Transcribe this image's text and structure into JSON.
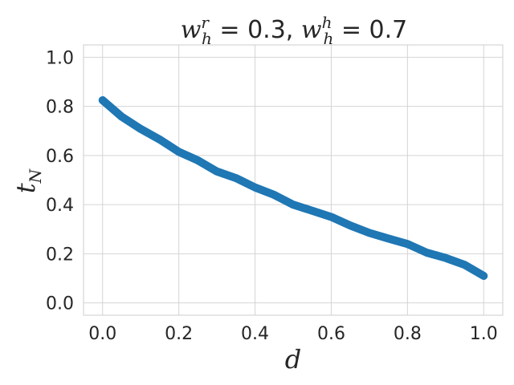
{
  "chart_data": {
    "type": "line",
    "title": {
      "lhs1": "w",
      "sup1": "r",
      "sub1": "h",
      "rhs1": " = 0.3, ",
      "lhs2": "w",
      "sup2": "h",
      "sub2": "h",
      "rhs2": " = 0.7"
    },
    "xlabel": "d",
    "ylabel": {
      "base": "t",
      "sub": "N"
    },
    "xlim": [
      -0.05,
      1.05
    ],
    "ylim": [
      -0.05,
      1.05
    ],
    "xticks": [
      "0.0",
      "0.2",
      "0.4",
      "0.6",
      "0.8",
      "1.0"
    ],
    "yticks": [
      "0.0",
      "0.2",
      "0.4",
      "0.6",
      "0.8",
      "1.0"
    ],
    "grid": true,
    "series": [
      {
        "color": "#1f77b4",
        "x": [
          0.0,
          0.05,
          0.1,
          0.15,
          0.2,
          0.25,
          0.3,
          0.35,
          0.4,
          0.45,
          0.5,
          0.55,
          0.6,
          0.65,
          0.7,
          0.75,
          0.8,
          0.85,
          0.9,
          0.95,
          1.0
        ],
        "values": [
          0.825,
          0.758,
          0.708,
          0.665,
          0.615,
          0.58,
          0.535,
          0.508,
          0.47,
          0.44,
          0.4,
          0.375,
          0.35,
          0.315,
          0.285,
          0.262,
          0.24,
          0.205,
          0.183,
          0.155,
          0.11
        ]
      }
    ]
  }
}
